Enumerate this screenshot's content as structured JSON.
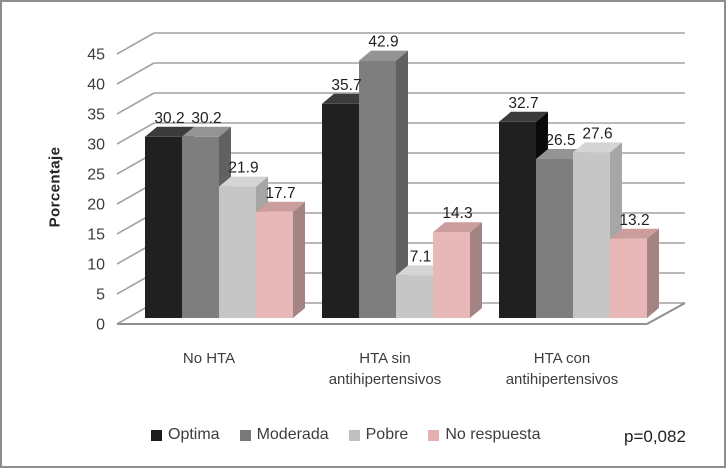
{
  "chart_data": {
    "type": "bar",
    "style": "3d-clustered-column",
    "title": "",
    "xlabel": "",
    "ylabel": "Porcentaje",
    "ylim": [
      0,
      45
    ],
    "yticks": [
      0,
      5,
      10,
      15,
      20,
      25,
      30,
      35,
      40,
      45
    ],
    "grid": true,
    "legend_position": "bottom",
    "categories": [
      "No HTA",
      "HTA sin antihipertensivos",
      "HTA con antihipertensivos"
    ],
    "series": [
      {
        "name": "Optima",
        "values": [
          30.2,
          35.7,
          32.7
        ],
        "colors": {
          "front": "#202020",
          "top": "#3b3b3b",
          "side": "#0a0a0a",
          "legend": "#1c1c1c"
        }
      },
      {
        "name": "Moderada",
        "values": [
          30.2,
          42.9,
          26.5
        ],
        "colors": {
          "front": "#7e7e7e",
          "top": "#949494",
          "side": "#616161",
          "legend": "#787878"
        }
      },
      {
        "name": "Pobre",
        "values": [
          21.9,
          7.1,
          27.6
        ],
        "colors": {
          "front": "#c6c6c6",
          "top": "#d5d5d5",
          "side": "#a6a6a6",
          "legend": "#bfbfbf"
        }
      },
      {
        "name": "No respuesta",
        "values": [
          17.7,
          14.3,
          13.2
        ],
        "colors": {
          "front": "#e8b7b7",
          "top": "#cc9d9d",
          "side": "#a48383",
          "legend": "#e3afaf"
        }
      }
    ],
    "annotation": "p=0,082",
    "colors": {
      "gridline": "#a2a2a2",
      "axis_floor": "#8f8f8f",
      "tick_text": "#3d3d3d",
      "bar_label_text": "#1e1e1e",
      "frame_border": "#8d8d8d"
    }
  }
}
